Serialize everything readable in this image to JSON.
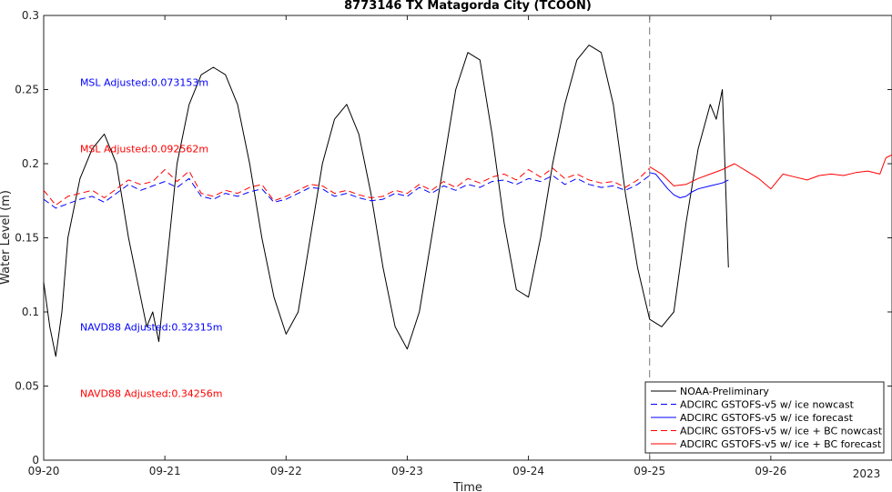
{
  "chart_data": {
    "type": "line",
    "title": "8773146 TX Matagorda City (TCOON)",
    "xlabel": "Time",
    "ylabel": "Water Level (m)",
    "xlim_days": [
      0,
      7
    ],
    "ylim": [
      0,
      0.3
    ],
    "x_ticks": [
      {
        "day": 0,
        "label": "09-20"
      },
      {
        "day": 1,
        "label": "09-21"
      },
      {
        "day": 2,
        "label": "09-22"
      },
      {
        "day": 3,
        "label": "09-23"
      },
      {
        "day": 4,
        "label": "09-24"
      },
      {
        "day": 5,
        "label": "09-25"
      },
      {
        "day": 6,
        "label": "09-26"
      }
    ],
    "year_label": "2023",
    "y_ticks": [
      "0",
      "0.05",
      "0.1",
      "0.15",
      "0.2",
      "0.25",
      "0.3"
    ],
    "y_tick_values": [
      0,
      0.05,
      0.1,
      0.15,
      0.2,
      0.25,
      0.3
    ],
    "nowcast_forecast_divider_day": 5,
    "grid": false,
    "legend_position": "bottom-right",
    "annotations": [
      {
        "text": "MSL Adjusted:0.073153m",
        "color": "#0000ff",
        "day": 0.3,
        "y": 0.255
      },
      {
        "text": "MSL Adjusted:0.092562m",
        "color": "#ff0000",
        "day": 0.3,
        "y": 0.21
      },
      {
        "text": "NAVD88 Adjusted:0.32315m",
        "color": "#0000ff",
        "day": 0.3,
        "y": 0.09
      },
      {
        "text": "NAVD88 Adjusted:0.34256m",
        "color": "#ff0000",
        "day": 0.3,
        "y": 0.045
      }
    ],
    "series": [
      {
        "name": "NOAA-Preliminary",
        "color": "#000000",
        "dash": false,
        "x": [
          0,
          0.05,
          0.1,
          0.15,
          0.2,
          0.3,
          0.4,
          0.5,
          0.6,
          0.7,
          0.8,
          0.85,
          0.9,
          0.95,
          1.0,
          1.1,
          1.2,
          1.3,
          1.4,
          1.5,
          1.6,
          1.7,
          1.8,
          1.9,
          2.0,
          2.1,
          2.2,
          2.3,
          2.4,
          2.5,
          2.6,
          2.7,
          2.8,
          2.9,
          3.0,
          3.1,
          3.2,
          3.3,
          3.4,
          3.5,
          3.6,
          3.7,
          3.8,
          3.9,
          4.0,
          4.1,
          4.2,
          4.3,
          4.4,
          4.5,
          4.6,
          4.7,
          4.8,
          4.9,
          5.0,
          5.1,
          5.2,
          5.3,
          5.4,
          5.5,
          5.55,
          5.6,
          5.65
        ],
        "y": [
          0.12,
          0.09,
          0.07,
          0.1,
          0.15,
          0.19,
          0.21,
          0.22,
          0.2,
          0.15,
          0.11,
          0.09,
          0.1,
          0.08,
          0.12,
          0.2,
          0.24,
          0.26,
          0.265,
          0.26,
          0.24,
          0.2,
          0.15,
          0.11,
          0.085,
          0.1,
          0.15,
          0.2,
          0.23,
          0.24,
          0.22,
          0.18,
          0.13,
          0.09,
          0.075,
          0.1,
          0.15,
          0.2,
          0.25,
          0.275,
          0.27,
          0.22,
          0.16,
          0.115,
          0.11,
          0.15,
          0.2,
          0.24,
          0.27,
          0.28,
          0.275,
          0.24,
          0.18,
          0.13,
          0.095,
          0.09,
          0.1,
          0.16,
          0.21,
          0.24,
          0.23,
          0.25,
          0.13
        ]
      },
      {
        "name": "ADCIRC GSTOFS-v5 w/ ice nowcast",
        "color": "#0000ff",
        "dash": true,
        "x": [
          0,
          0.1,
          0.2,
          0.3,
          0.4,
          0.5,
          0.6,
          0.7,
          0.8,
          0.9,
          1.0,
          1.1,
          1.2,
          1.3,
          1.4,
          1.5,
          1.6,
          1.7,
          1.8,
          1.9,
          2.0,
          2.1,
          2.2,
          2.3,
          2.4,
          2.5,
          2.6,
          2.7,
          2.8,
          2.9,
          3.0,
          3.1,
          3.2,
          3.3,
          3.4,
          3.5,
          3.6,
          3.7,
          3.8,
          3.9,
          4.0,
          4.1,
          4.2,
          4.3,
          4.4,
          4.5,
          4.6,
          4.7,
          4.8,
          4.9,
          5.0
        ],
        "y": [
          0.176,
          0.17,
          0.173,
          0.176,
          0.178,
          0.174,
          0.18,
          0.186,
          0.182,
          0.185,
          0.188,
          0.184,
          0.19,
          0.178,
          0.176,
          0.18,
          0.178,
          0.181,
          0.183,
          0.174,
          0.176,
          0.18,
          0.184,
          0.183,
          0.178,
          0.18,
          0.177,
          0.175,
          0.176,
          0.18,
          0.178,
          0.184,
          0.18,
          0.185,
          0.182,
          0.186,
          0.184,
          0.188,
          0.189,
          0.186,
          0.19,
          0.188,
          0.192,
          0.186,
          0.19,
          0.186,
          0.184,
          0.185,
          0.182,
          0.186,
          0.192
        ]
      },
      {
        "name": "ADCIRC GSTOFS-v5 w/ ice forecast",
        "color": "#0000ff",
        "dash": false,
        "x": [
          5.0,
          5.05,
          5.1,
          5.15,
          5.2,
          5.25,
          5.3,
          5.35,
          5.4,
          5.5,
          5.6,
          5.65
        ],
        "y": [
          0.194,
          0.193,
          0.188,
          0.183,
          0.179,
          0.177,
          0.178,
          0.181,
          0.183,
          0.185,
          0.187,
          0.189
        ]
      },
      {
        "name": "ADCIRC GSTOFS-v5 w/ ice + BC nowcast",
        "color": "#ff0000",
        "dash": true,
        "x": [
          0,
          0.1,
          0.2,
          0.3,
          0.4,
          0.5,
          0.6,
          0.7,
          0.8,
          0.9,
          1.0,
          1.1,
          1.2,
          1.3,
          1.4,
          1.5,
          1.6,
          1.7,
          1.8,
          1.9,
          2.0,
          2.1,
          2.2,
          2.3,
          2.4,
          2.5,
          2.6,
          2.7,
          2.8,
          2.9,
          3.0,
          3.1,
          3.2,
          3.3,
          3.4,
          3.5,
          3.6,
          3.7,
          3.8,
          3.9,
          4.0,
          4.1,
          4.2,
          4.3,
          4.4,
          4.5,
          4.6,
          4.7,
          4.8,
          4.9,
          5.0
        ],
        "y": [
          0.182,
          0.172,
          0.178,
          0.18,
          0.182,
          0.177,
          0.183,
          0.189,
          0.186,
          0.188,
          0.196,
          0.188,
          0.195,
          0.18,
          0.178,
          0.182,
          0.18,
          0.184,
          0.186,
          0.175,
          0.178,
          0.182,
          0.186,
          0.185,
          0.18,
          0.182,
          0.179,
          0.177,
          0.178,
          0.182,
          0.18,
          0.186,
          0.182,
          0.188,
          0.184,
          0.19,
          0.187,
          0.191,
          0.193,
          0.189,
          0.196,
          0.191,
          0.197,
          0.19,
          0.193,
          0.189,
          0.187,
          0.188,
          0.184,
          0.189,
          0.197
        ]
      },
      {
        "name": "ADCIRC GSTOFS-v5 w/ ice + BC forecast",
        "color": "#ff0000",
        "dash": false,
        "x": [
          5.0,
          5.1,
          5.2,
          5.3,
          5.4,
          5.5,
          5.6,
          5.7,
          5.8,
          5.9,
          6.0,
          6.1,
          6.2,
          6.3,
          6.4,
          6.5,
          6.6,
          6.7,
          6.8,
          6.9,
          6.95,
          7.0
        ],
        "y": [
          0.198,
          0.193,
          0.185,
          0.186,
          0.19,
          0.193,
          0.196,
          0.2,
          0.195,
          0.19,
          0.183,
          0.193,
          0.191,
          0.189,
          0.192,
          0.193,
          0.192,
          0.194,
          0.195,
          0.193,
          0.204,
          0.206
        ]
      }
    ]
  }
}
